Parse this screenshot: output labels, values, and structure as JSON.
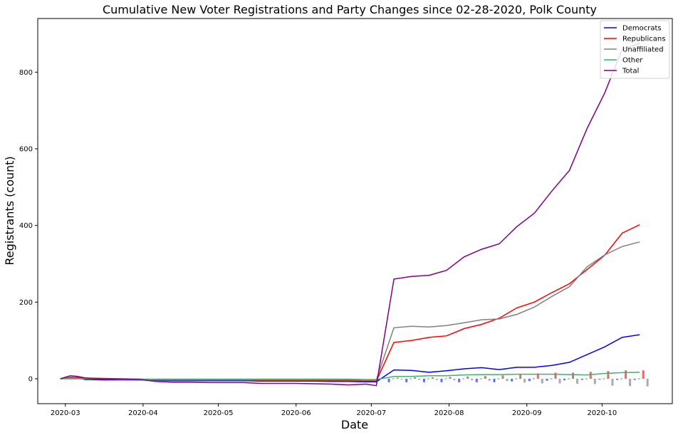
{
  "chart_data": {
    "type": "line",
    "title": "Cumulative New Voter Registrations and Party Changes since 02-28-2020, Polk County",
    "xlabel": "Date",
    "ylabel": "Registrants (count)",
    "xlim": [
      "2020-02-19",
      "2020-10-29"
    ],
    "ylim": [
      -65,
      940
    ],
    "x_ticks": [
      "2020-03",
      "2020-04",
      "2020-05",
      "2020-06",
      "2020-07",
      "2020-08",
      "2020-09",
      "2020-10"
    ],
    "y_ticks": [
      0,
      200,
      400,
      600,
      800
    ],
    "legend": {
      "position": "top-right"
    },
    "x": [
      "2020-02-28",
      "2020-03-03",
      "2020-03-06",
      "2020-03-09",
      "2020-03-16",
      "2020-03-24",
      "2020-03-31",
      "2020-04-06",
      "2020-04-13",
      "2020-04-20",
      "2020-04-27",
      "2020-05-04",
      "2020-05-11",
      "2020-05-18",
      "2020-05-25",
      "2020-06-01",
      "2020-06-08",
      "2020-06-15",
      "2020-06-22",
      "2020-06-29",
      "2020-07-03",
      "2020-07-10",
      "2020-07-17",
      "2020-07-24",
      "2020-07-31",
      "2020-08-07",
      "2020-08-14",
      "2020-08-21",
      "2020-08-28",
      "2020-09-04",
      "2020-09-11",
      "2020-09-18",
      "2020-09-25",
      "2020-10-02",
      "2020-10-09",
      "2020-10-16"
    ],
    "series": [
      {
        "name": "Democrats",
        "color": "#0000ff",
        "values": [
          0,
          3,
          2,
          -2,
          -3,
          -3,
          -3,
          -4,
          -5,
          -5,
          -5,
          -5,
          -5,
          -6,
          -6,
          -6,
          -6,
          -7,
          -7,
          -8,
          -8,
          23,
          22,
          17,
          21,
          26,
          29,
          24,
          30,
          30,
          35,
          43,
          63,
          83,
          108,
          115
        ]
      },
      {
        "name": "Republicans",
        "color": "#ff0000",
        "values": [
          0,
          4,
          3,
          2,
          1,
          0,
          -1,
          -3,
          -3,
          -3,
          -3,
          -3,
          -3,
          -4,
          -4,
          -4,
          -4,
          -5,
          -5,
          -6,
          -6,
          95,
          100,
          108,
          112,
          131,
          142,
          158,
          185,
          200,
          225,
          248,
          285,
          322,
          380,
          402
        ]
      },
      {
        "name": "Unaffiliated",
        "color": "#808080",
        "values": [
          0,
          2,
          1,
          0,
          -1,
          -2,
          -2,
          -3,
          -3,
          -3,
          -3,
          -3,
          -3,
          -3,
          -3,
          -3,
          -3,
          -3,
          -3,
          -3,
          -3,
          133,
          137,
          135,
          139,
          146,
          154,
          156,
          168,
          187,
          215,
          240,
          292,
          323,
          345,
          357
        ]
      },
      {
        "name": "Other",
        "color": "#3cb371",
        "values": [
          0,
          0,
          0,
          0,
          -1,
          -1,
          -1,
          -1,
          -1,
          -1,
          -1,
          -1,
          -1,
          -1,
          -1,
          -1,
          -1,
          -1,
          -1,
          -2,
          -2,
          6,
          6,
          8,
          8,
          10,
          11,
          11,
          12,
          12,
          12,
          11,
          10,
          14,
          16,
          17
        ]
      },
      {
        "name": "Total",
        "color": "#800080",
        "values": [
          0,
          8,
          6,
          2,
          -1,
          -1,
          -2,
          -7,
          -9,
          -9,
          -10,
          -10,
          -10,
          -12,
          -12,
          -12,
          -13,
          -14,
          -16,
          -14,
          -18,
          260,
          267,
          270,
          283,
          318,
          338,
          352,
          397,
          432,
          490,
          544,
          653,
          745,
          860,
          875
        ]
      }
    ],
    "bars": {
      "description_colors": {
        "dem": "#6666ff",
        "rep": "#ee6666",
        "una": "#aaaaaa",
        "oth": "#3cb371"
      },
      "x": [
        "2020-07-10",
        "2020-07-17",
        "2020-07-24",
        "2020-07-31",
        "2020-08-07",
        "2020-08-14",
        "2020-08-21",
        "2020-08-28",
        "2020-09-04",
        "2020-09-11",
        "2020-09-18",
        "2020-09-25",
        "2020-10-02",
        "2020-10-09",
        "2020-10-16"
      ],
      "dem": [
        -9,
        -9,
        -9,
        -9,
        -9,
        -9,
        -9,
        -7,
        -6,
        -5,
        -4,
        -3,
        -2,
        -3,
        -3
      ],
      "rep": [
        3,
        4,
        4,
        5,
        6,
        7,
        9,
        11,
        14,
        16,
        16,
        18,
        20,
        22,
        22
      ],
      "una": [
        -2,
        -3,
        -3,
        -4,
        -4,
        -5,
        -6,
        -10,
        -12,
        -12,
        -13,
        -14,
        -18,
        -19,
        -20
      ],
      "oth": [
        1,
        1,
        1,
        1,
        1,
        1,
        1,
        1,
        1,
        1,
        1,
        1,
        1,
        1,
        1
      ]
    }
  }
}
